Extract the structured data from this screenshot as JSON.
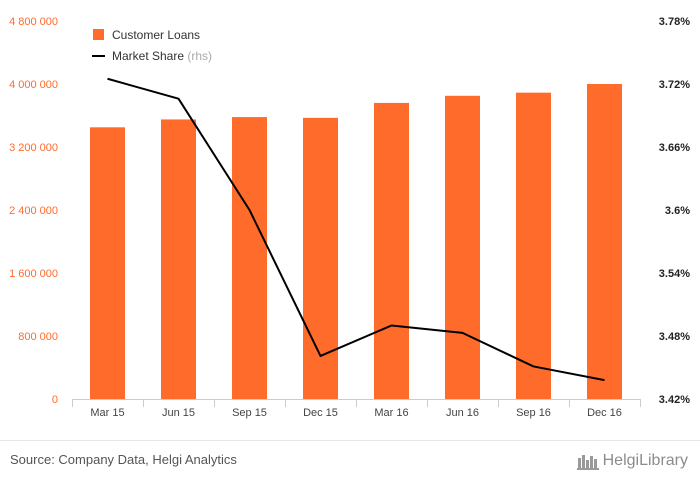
{
  "chart_data": {
    "type": "bar",
    "categories": [
      "Mar 15",
      "Jun 15",
      "Sep 15",
      "Dec 15",
      "Mar 16",
      "Jun 16",
      "Sep 16",
      "Dec 16"
    ],
    "series": [
      {
        "name": "Customer Loans",
        "type": "bar",
        "axis": "left",
        "color": "#ff6b2b",
        "values": [
          3450000,
          3550000,
          3580000,
          3570000,
          3760000,
          3850000,
          3890000,
          4000000
        ]
      },
      {
        "name": "Market Share",
        "type": "line",
        "axis": "right",
        "color": "#000000",
        "values": [
          3.725,
          3.706,
          3.6,
          3.461,
          3.49,
          3.483,
          3.451,
          3.438
        ]
      }
    ],
    "legend": {
      "position": "top-left",
      "rhs_suffix": "(rhs)"
    },
    "y_left": {
      "ticks": [
        "0",
        "800 000",
        "1 600 000",
        "2 400 000",
        "3 200 000",
        "4 000 000",
        "4 800 000"
      ],
      "range": [
        0,
        4800000
      ],
      "color": "#ff6b2b"
    },
    "y_right": {
      "ticks": [
        "3.42%",
        "3.48%",
        "3.54%",
        "3.6%",
        "3.66%",
        "3.72%",
        "3.78%"
      ],
      "range": [
        3.42,
        3.78
      ]
    },
    "grid": false
  },
  "footer": {
    "source": "Source: Company Data, Helgi Analytics",
    "logo_text": "HelgiLibrary"
  }
}
